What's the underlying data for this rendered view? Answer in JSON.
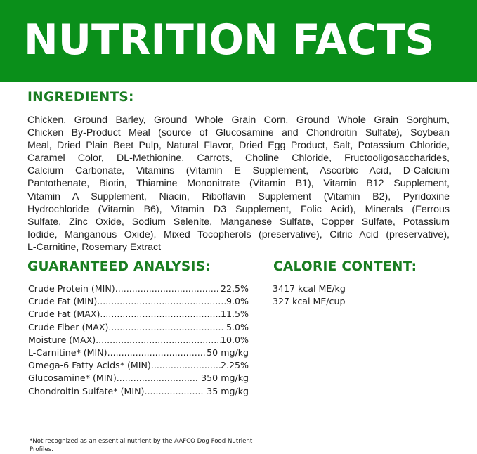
{
  "header": {
    "title": "NUTRITION FACTS",
    "background_color": "#0a8f1a"
  },
  "ingredients": {
    "heading": "INGREDIENTS:",
    "lines": [
      "Chicken, Ground Barley, Ground Whole Grain Corn, Ground Whole Grain Sorghum,",
      "Chicken By-Product Meal (source of Glucosamine and Chondroitin Sulfate), Soybean",
      "Meal, Dried Plain Beet Pulp, Natural Flavor, Dried Egg Product, Salt, Potassium Chloride,",
      "Caramel Color, DL-Methionine, Carrots, Choline Chloride, Fructooligosaccharides,",
      "Calcium Carbonate, Vitamins (Vitamin E Supplement, Ascorbic Acid, D-Calcium",
      "Pantothenate, Biotin, Thiamine Mononitrate (Vitamin B1), Vitamin B12 Supplement,",
      "Vitamin A Supplement, Niacin, Riboflavin Supplement (Vitamin B2), Pyridoxine",
      "Hydrochloride (Vitamin B6), Vitamin D3 Supplement, Folic Acid), Minerals (Ferrous",
      "Sulfate, Zinc Oxide, Sodium Selenite, Manganese Sulfate, Copper Sulfate, Potassium",
      "Iodide, Manganous Oxide), Mixed Tocopherols (preservative), Citric Acid (preservative),",
      "L-Carnitine, Rosemary Extract"
    ]
  },
  "guaranteed_analysis": {
    "heading": "GUARANTEED ANALYSIS:",
    "rows": [
      {
        "label": "Crude Protein (MIN)",
        "value": " 22.5%"
      },
      {
        "label": "Crude Fat (MIN)",
        "value": "9.0%"
      },
      {
        "label": "Crude Fat (MAX)",
        "value": "11.5%"
      },
      {
        "label": "Crude Fiber (MAX)",
        "value": " 5.0%"
      },
      {
        "label": "Moisture (MAX)",
        "value": "10.0%"
      },
      {
        "label": "L-Carnitine* (MIN)",
        "value": "50 mg/kg"
      },
      {
        "label": "Omega-6 Fatty Acids* (MIN)",
        "value": "2.25%"
      },
      {
        "label": "Glucosamine* (MIN)",
        "value": " 350 mg/kg"
      },
      {
        "label": "Chondroitin Sulfate* (MIN)",
        "value": " 35 mg/kg"
      }
    ]
  },
  "calorie_content": {
    "heading": "CALORIE CONTENT:",
    "lines": [
      "3417 kcal ME/kg",
      "327 kcal ME/cup"
    ]
  },
  "footnote": "*Not recognized as an essential nutrient by the AAFCO Dog Food Nutrient Profiles.",
  "heading_color": "#197d21"
}
